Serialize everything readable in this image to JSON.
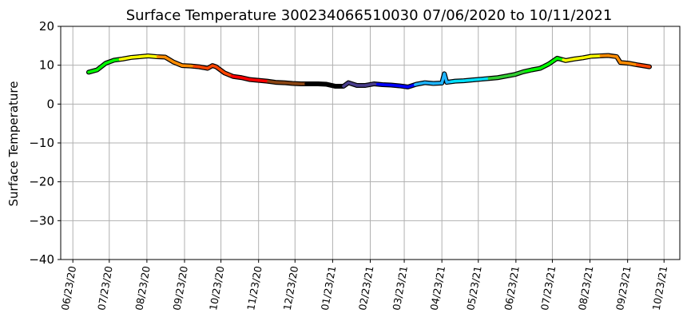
{
  "chart_data": {
    "type": "line",
    "title": "Surface Temperature 300234066510030  07/06/2020 to 10/11/2021",
    "xlabel": "",
    "ylabel": "Surface Temperature",
    "xlim": [
      "2020-06-13",
      "2021-11-05"
    ],
    "ylim": [
      -40,
      20
    ],
    "yticks": [
      -40,
      -30,
      -20,
      -10,
      0,
      10,
      20
    ],
    "xticks": [
      "2020-06-23",
      "2020-07-23",
      "2020-08-23",
      "2020-09-23",
      "2020-10-23",
      "2020-11-23",
      "2020-12-23",
      "2021-01-23",
      "2021-02-23",
      "2021-03-23",
      "2021-04-23",
      "2021-05-23",
      "2021-06-23",
      "2021-07-23",
      "2021-08-23",
      "2021-09-23",
      "2021-10-23"
    ],
    "xtick_labels": [
      "06/23/20",
      "07/23/20",
      "08/23/20",
      "09/23/20",
      "10/23/20",
      "11/23/20",
      "12/23/20",
      "01/23/21",
      "02/23/21",
      "03/23/21",
      "04/23/21",
      "05/23/21",
      "06/23/21",
      "07/23/21",
      "08/23/21",
      "09/23/21",
      "10/23/21"
    ],
    "grid": true,
    "line_colored_by": "month",
    "month_colors": {
      "1": "#000000",
      "2": "#483d8b",
      "3": "#0000ff",
      "4": "#1eb4ff",
      "5": "#00e0ff",
      "6": "#32cd32",
      "7": "#00ff00",
      "8": "#ffff00",
      "9": "#ff8c00",
      "10": "#ff4500",
      "11": "#ff0000",
      "12": "#8b4513"
    },
    "outline_color": "#000000",
    "x": [
      "2020-07-06",
      "2020-07-13",
      "2020-07-20",
      "2020-07-27",
      "2020-08-03",
      "2020-08-10",
      "2020-08-17",
      "2020-08-24",
      "2020-08-31",
      "2020-09-07",
      "2020-09-14",
      "2020-09-21",
      "2020-09-28",
      "2020-10-05",
      "2020-10-12",
      "2020-10-16",
      "2020-10-19",
      "2020-10-26",
      "2020-11-02",
      "2020-11-09",
      "2020-11-16",
      "2020-11-23",
      "2020-11-30",
      "2020-12-07",
      "2020-12-14",
      "2020-12-21",
      "2020-12-28",
      "2021-01-04",
      "2021-01-11",
      "2021-01-18",
      "2021-01-25",
      "2021-02-01",
      "2021-02-05",
      "2021-02-12",
      "2021-02-19",
      "2021-02-26",
      "2021-03-05",
      "2021-03-12",
      "2021-03-19",
      "2021-03-26",
      "2021-04-02",
      "2021-04-09",
      "2021-04-16",
      "2021-04-23",
      "2021-04-25",
      "2021-04-27",
      "2021-05-04",
      "2021-05-11",
      "2021-05-18",
      "2021-05-25",
      "2021-06-01",
      "2021-06-08",
      "2021-06-15",
      "2021-06-22",
      "2021-06-29",
      "2021-07-06",
      "2021-07-13",
      "2021-07-20",
      "2021-07-27",
      "2021-08-03",
      "2021-08-10",
      "2021-08-17",
      "2021-08-24",
      "2021-08-31",
      "2021-09-07",
      "2021-09-14",
      "2021-09-17",
      "2021-09-24",
      "2021-10-01",
      "2021-10-11"
    ],
    "y": [
      8.2,
      8.8,
      10.5,
      11.3,
      11.6,
      12.0,
      12.2,
      12.4,
      12.2,
      12.1,
      10.8,
      9.9,
      9.8,
      9.6,
      9.2,
      9.9,
      9.6,
      8.0,
      7.1,
      6.8,
      6.3,
      6.1,
      5.9,
      5.6,
      5.5,
      5.3,
      5.2,
      5.2,
      5.2,
      5.1,
      4.6,
      4.6,
      5.5,
      4.8,
      4.8,
      5.2,
      5.0,
      4.9,
      4.7,
      4.4,
      5.1,
      5.5,
      5.3,
      5.4,
      7.8,
      5.6,
      5.9,
      6.0,
      6.2,
      6.4,
      6.6,
      6.8,
      7.2,
      7.6,
      8.3,
      8.8,
      9.2,
      10.3,
      11.8,
      11.2,
      11.6,
      11.9,
      12.3,
      12.4,
      12.5,
      12.2,
      10.7,
      10.5,
      10.1,
      9.6
    ]
  }
}
